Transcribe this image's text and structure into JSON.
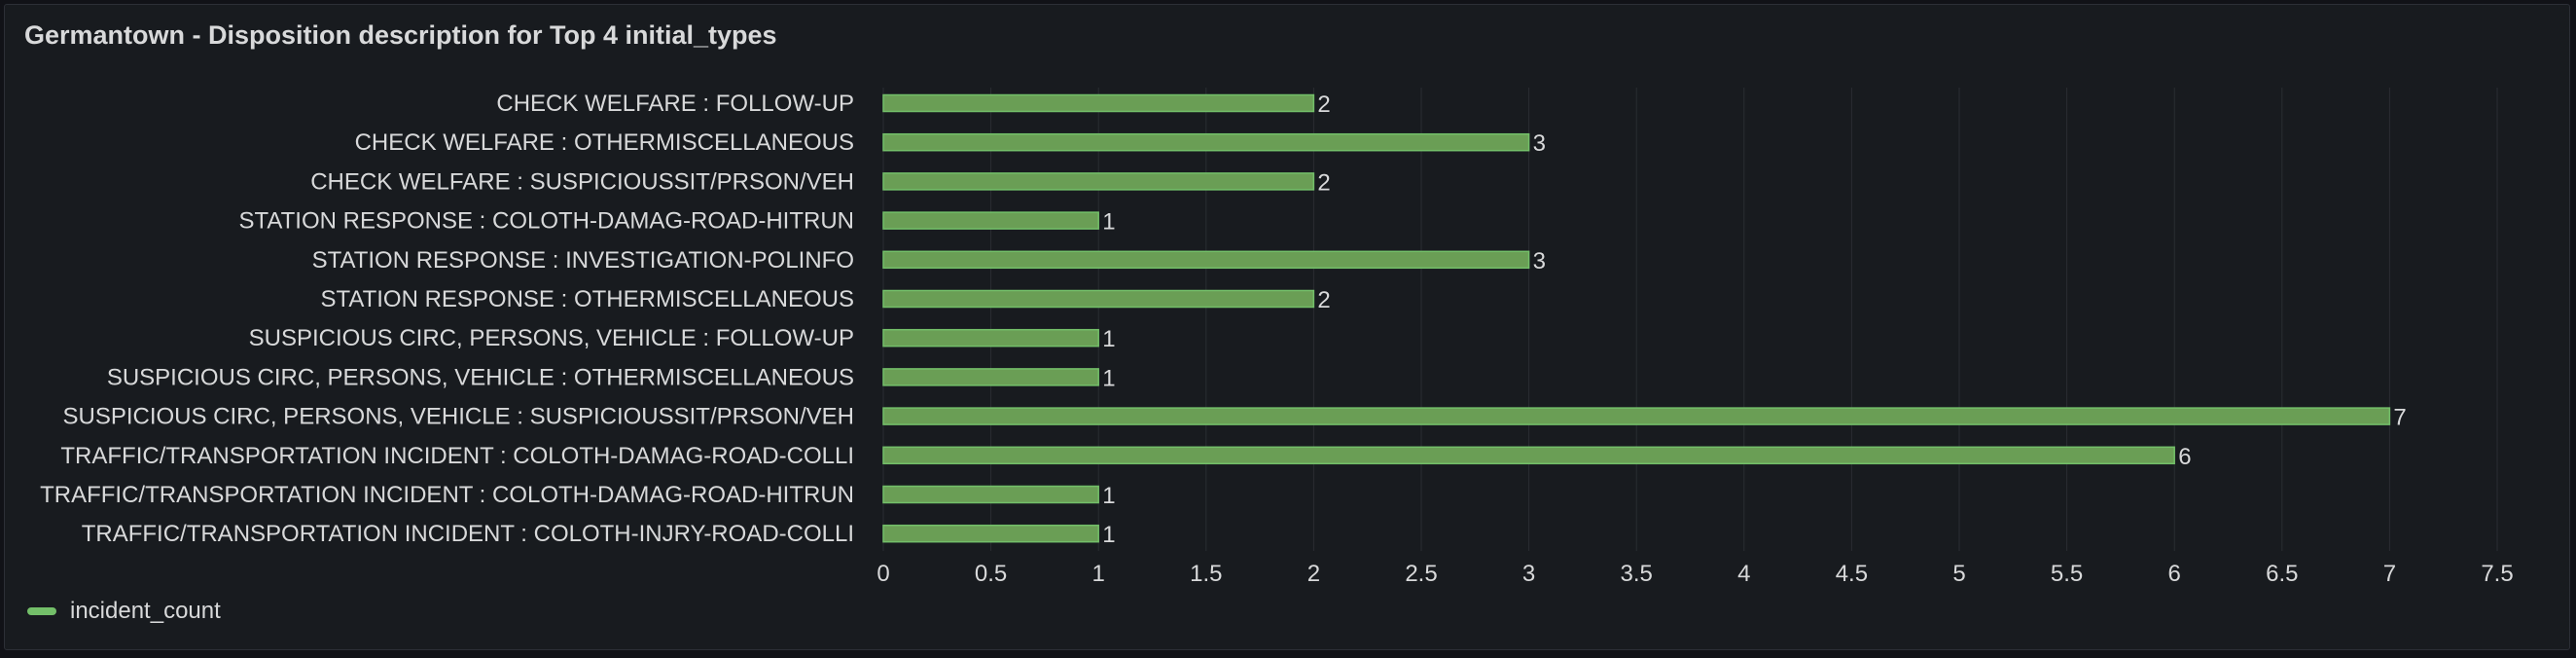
{
  "panel": {
    "title": "Germantown - Disposition description for Top 4 initial_types"
  },
  "colors": {
    "bar": "#73bf69",
    "bar_fill": "#6a9e55",
    "text": "#d8d9da",
    "grid": "#2a2d33"
  },
  "chart_data": {
    "type": "bar",
    "orientation": "horizontal",
    "title": "Germantown - Disposition description for Top 4 initial_types",
    "categories": [
      "CHECK WELFARE : FOLLOW-UP",
      "CHECK WELFARE : OTHERMISCELLANEOUS",
      "CHECK WELFARE : SUSPICIOUSSIT/PRSON/VEH",
      "STATION RESPONSE : COLOTH-DAMAG-ROAD-HITRUN",
      "STATION RESPONSE : INVESTIGATION-POLINFO",
      "STATION RESPONSE : OTHERMISCELLANEOUS",
      "SUSPICIOUS CIRC, PERSONS, VEHICLE : FOLLOW-UP",
      "SUSPICIOUS CIRC, PERSONS, VEHICLE : OTHERMISCELLANEOUS",
      "SUSPICIOUS CIRC, PERSONS, VEHICLE : SUSPICIOUSSIT/PRSON/VEH",
      "TRAFFIC/TRANSPORTATION INCIDENT : COLOTH-DAMAG-ROAD-COLLI",
      "TRAFFIC/TRANSPORTATION INCIDENT : COLOTH-DAMAG-ROAD-HITRUN",
      "TRAFFIC/TRANSPORTATION INCIDENT : COLOTH-INJRY-ROAD-COLLI"
    ],
    "series": [
      {
        "name": "incident_count",
        "values": [
          2,
          3,
          2,
          1,
          3,
          2,
          1,
          1,
          7,
          6,
          1,
          1
        ]
      }
    ],
    "xticks": [
      "0",
      "0.5",
      "1",
      "1.5",
      "2",
      "2.5",
      "3",
      "3.5",
      "4",
      "4.5",
      "5",
      "5.5",
      "6",
      "6.5",
      "7",
      "7.5"
    ],
    "xlim": [
      0,
      7.5
    ],
    "grid": true,
    "legend": "bottom-left"
  }
}
